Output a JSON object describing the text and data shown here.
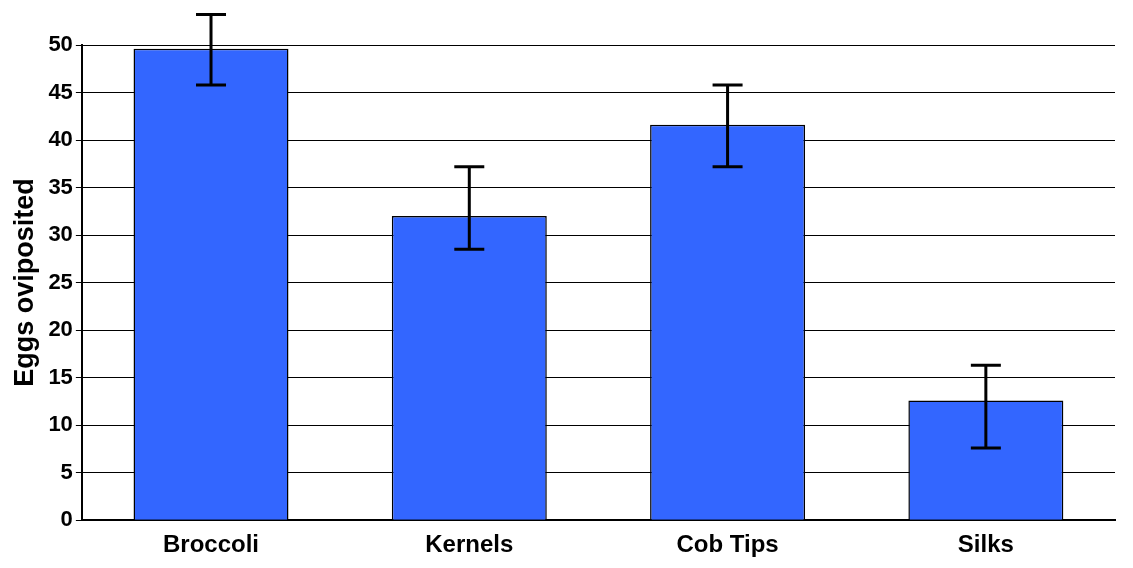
{
  "chart_data": {
    "type": "bar",
    "ylabel": "Eggs oviposited",
    "categories": [
      "Broccoli",
      "Kernels",
      "Cob Tips",
      "Silks"
    ],
    "values": [
      49.6,
      32.0,
      41.6,
      12.6
    ],
    "errors": [
      [
        45.8,
        53.2
      ],
      [
        28.5,
        37.2
      ],
      [
        37.2,
        45.8
      ],
      [
        7.6,
        16.3
      ]
    ],
    "color": "#3366ff",
    "ylim": [
      0,
      50
    ],
    "yticks": [
      0,
      5,
      10,
      15,
      20,
      25,
      30,
      35,
      40,
      45,
      50
    ],
    "grid": "y"
  }
}
